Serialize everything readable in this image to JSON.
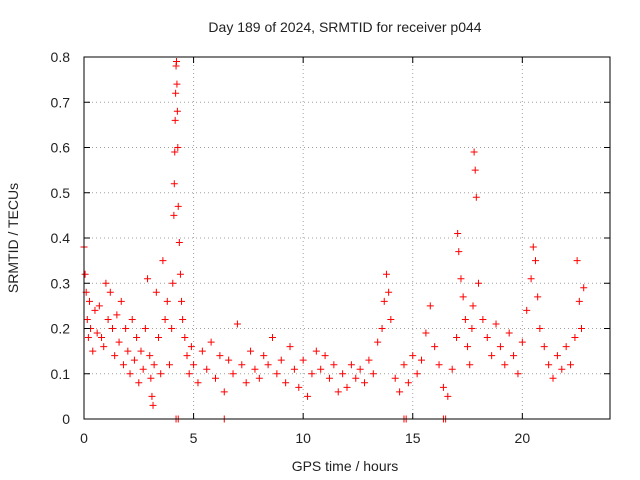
{
  "chart_data": {
    "type": "scatter",
    "title": "Day 189 of 2024, SRMTID for receiver p044",
    "xlabel": "GPS time / hours",
    "ylabel": "SRMTID / TECUs",
    "xlim": [
      0,
      24
    ],
    "ylim": [
      0,
      0.8
    ],
    "xticks": [
      0,
      5,
      10,
      15,
      20
    ],
    "xtick_labels": [
      "0",
      "5",
      "10",
      "15",
      "20"
    ],
    "yticks": [
      0,
      0.1,
      0.2,
      0.3,
      0.4,
      0.5,
      0.6,
      0.7,
      0.8
    ],
    "ytick_labels": [
      "0",
      "0.1",
      "0.2",
      "0.3",
      "0.4",
      "0.5",
      "0.6",
      "0.7",
      "0.8"
    ],
    "grid": true,
    "marker": "plus",
    "color": "#ff0000",
    "series": [
      {
        "name": "SRMTID",
        "x": [
          0.0,
          0.05,
          0.1,
          0.15,
          0.2,
          0.25,
          0.3,
          0.4,
          0.5,
          0.6,
          0.7,
          0.8,
          0.9,
          1.0,
          1.1,
          1.2,
          1.3,
          1.4,
          1.5,
          1.6,
          1.7,
          1.8,
          1.9,
          2.0,
          2.1,
          2.2,
          2.3,
          2.4,
          2.5,
          2.6,
          2.7,
          2.8,
          2.9,
          3.0,
          3.05,
          3.1,
          3.15,
          3.2,
          3.3,
          3.4,
          3.5,
          3.6,
          3.7,
          3.8,
          3.9,
          4.0,
          4.05,
          4.1,
          4.12,
          4.14,
          4.16,
          4.18,
          4.2,
          4.22,
          4.24,
          4.26,
          4.28,
          4.3,
          4.35,
          4.4,
          4.45,
          4.5,
          4.6,
          4.7,
          4.8,
          4.9,
          5.0,
          5.2,
          5.4,
          5.6,
          5.8,
          6.0,
          6.2,
          6.4,
          6.6,
          6.8,
          7.0,
          7.2,
          7.4,
          7.6,
          7.8,
          8.0,
          8.2,
          8.4,
          8.6,
          8.8,
          9.0,
          9.2,
          9.4,
          9.6,
          9.8,
          10.0,
          10.2,
          10.4,
          10.6,
          10.8,
          11.0,
          11.2,
          11.4,
          11.6,
          11.8,
          12.0,
          12.2,
          12.4,
          12.6,
          12.8,
          13.0,
          13.2,
          13.4,
          13.6,
          13.7,
          13.8,
          13.9,
          14.0,
          14.2,
          14.4,
          14.6,
          14.8,
          15.0,
          15.2,
          15.4,
          15.6,
          15.8,
          16.0,
          16.2,
          16.4,
          16.6,
          16.8,
          17.0,
          17.05,
          17.1,
          17.2,
          17.3,
          17.4,
          17.5,
          17.6,
          17.7,
          17.75,
          17.8,
          17.85,
          17.9,
          18.0,
          18.2,
          18.4,
          18.6,
          18.8,
          19.0,
          19.2,
          19.4,
          19.6,
          19.8,
          20.0,
          20.2,
          20.4,
          20.5,
          20.6,
          20.7,
          20.8,
          21.0,
          21.2,
          21.4,
          21.6,
          21.8,
          22.0,
          22.2,
          22.4,
          22.5,
          22.6,
          22.7,
          22.8,
          4.2,
          4.3,
          6.4,
          14.6,
          14.7,
          16.4,
          16.5
        ],
        "y": [
          0.38,
          0.32,
          0.28,
          0.22,
          0.18,
          0.26,
          0.2,
          0.15,
          0.24,
          0.19,
          0.25,
          0.18,
          0.16,
          0.3,
          0.22,
          0.28,
          0.2,
          0.14,
          0.23,
          0.17,
          0.26,
          0.12,
          0.2,
          0.15,
          0.1,
          0.22,
          0.13,
          0.18,
          0.08,
          0.15,
          0.11,
          0.2,
          0.31,
          0.14,
          0.09,
          0.05,
          0.03,
          0.12,
          0.28,
          0.18,
          0.1,
          0.35,
          0.22,
          0.26,
          0.12,
          0.2,
          0.3,
          0.45,
          0.52,
          0.59,
          0.66,
          0.72,
          0.78,
          0.79,
          0.74,
          0.68,
          0.6,
          0.47,
          0.39,
          0.32,
          0.26,
          0.22,
          0.18,
          0.14,
          0.1,
          0.16,
          0.12,
          0.08,
          0.15,
          0.11,
          0.17,
          0.09,
          0.14,
          0.06,
          0.13,
          0.1,
          0.21,
          0.12,
          0.08,
          0.15,
          0.11,
          0.09,
          0.14,
          0.12,
          0.18,
          0.1,
          0.13,
          0.08,
          0.16,
          0.11,
          0.07,
          0.13,
          0.05,
          0.1,
          0.15,
          0.11,
          0.14,
          0.09,
          0.12,
          0.06,
          0.1,
          0.07,
          0.12,
          0.09,
          0.11,
          0.08,
          0.13,
          0.1,
          0.17,
          0.2,
          0.26,
          0.32,
          0.28,
          0.22,
          0.09,
          0.06,
          0.12,
          0.08,
          0.14,
          0.1,
          0.13,
          0.19,
          0.25,
          0.16,
          0.12,
          0.07,
          0.05,
          0.11,
          0.18,
          0.41,
          0.37,
          0.31,
          0.27,
          0.22,
          0.16,
          0.12,
          0.2,
          0.25,
          0.59,
          0.55,
          0.49,
          0.3,
          0.22,
          0.18,
          0.14,
          0.21,
          0.16,
          0.12,
          0.19,
          0.14,
          0.1,
          0.17,
          0.24,
          0.31,
          0.38,
          0.35,
          0.27,
          0.2,
          0.16,
          0.12,
          0.09,
          0.14,
          0.11,
          0.16,
          0.12,
          0.18,
          0.35,
          0.26,
          0.2,
          0.29,
          0.0,
          0.0,
          0.0,
          0.0,
          0.0,
          0.0,
          0.0
        ]
      }
    ]
  }
}
